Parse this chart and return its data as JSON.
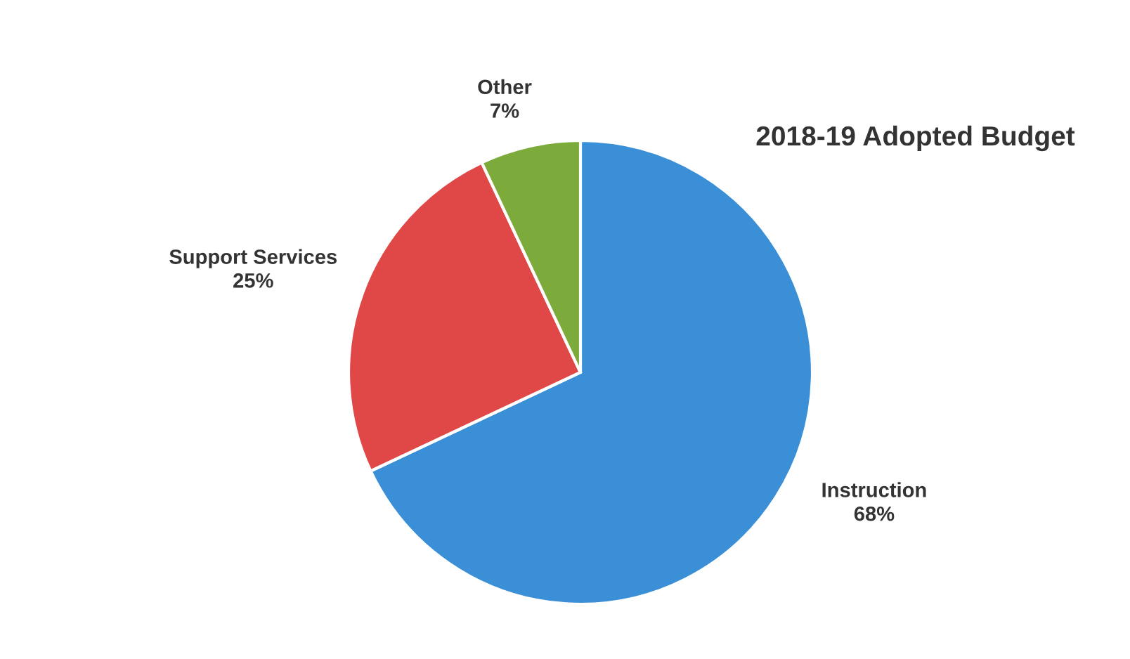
{
  "chart_data": {
    "type": "pie",
    "title": "2018-19 Adopted Budget",
    "categories": [
      "Instruction",
      "Support Services",
      "Other"
    ],
    "values": [
      68,
      25,
      7
    ],
    "value_labels": [
      "68%",
      "25%",
      "7%"
    ],
    "colors": [
      "#3a8fd6",
      "#e04848",
      "#7cab3c"
    ],
    "legend": false
  }
}
